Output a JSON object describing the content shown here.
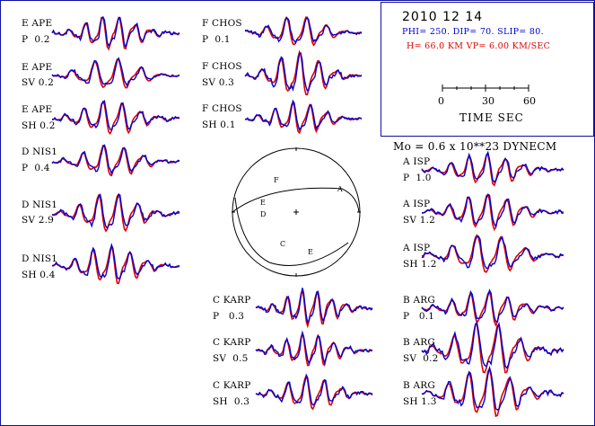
{
  "header": {
    "date": "2010 12 14",
    "mechanism": "PHI= 250. DIP= 70. SLIP= 80.",
    "depth_velocity": "H= 66.0 KM  VP= 6.00 KM/SEC",
    "scale_ticks": [
      "0",
      "30",
      "60"
    ],
    "scale_label": "TIME  SEC",
    "moment": "Mo =  0.6 x 10**23 DYNECM"
  },
  "colors": {
    "observed": "#0000d0",
    "synthetic": "#e00000",
    "frame": "#1010a0"
  },
  "stations": [
    {
      "code": "E APE",
      "phase": "P",
      "amp": "0.2"
    },
    {
      "code": "E APE",
      "phase": "SV",
      "amp": "0.2"
    },
    {
      "code": "E APE",
      "phase": "SH",
      "amp": "0.2"
    },
    {
      "code": "D NIS1",
      "phase": "P",
      "amp": "0.4"
    },
    {
      "code": "D NIS1",
      "phase": "SV",
      "amp": "2.9"
    },
    {
      "code": "D NIS1",
      "phase": "SH",
      "amp": "0.4"
    },
    {
      "code": "F CHOS",
      "phase": "P",
      "amp": "0.1"
    },
    {
      "code": "F CHOS",
      "phase": "SV",
      "amp": "0.3"
    },
    {
      "code": "F CHOS",
      "phase": "SH",
      "amp": "0.1"
    },
    {
      "code": "A ISP",
      "phase": "P",
      "amp": "1.0"
    },
    {
      "code": "A ISP",
      "phase": "SV",
      "amp": "1.2"
    },
    {
      "code": "A ISP",
      "phase": "SH",
      "amp": "1.2"
    },
    {
      "code": "C KARP",
      "phase": "P",
      "amp": "0.3"
    },
    {
      "code": "C KARP",
      "phase": "SV",
      "amp": "0.5"
    },
    {
      "code": "C KARP",
      "phase": "SH",
      "amp": "0.3"
    },
    {
      "code": "B ARG",
      "phase": "P",
      "amp": "0.1"
    },
    {
      "code": "B ARG",
      "phase": "SV",
      "amp": "0.2"
    },
    {
      "code": "B ARG",
      "phase": "SH",
      "amp": "1.3"
    }
  ],
  "beachball": {
    "markers": [
      "F",
      "E",
      "D",
      "A",
      "C",
      "E"
    ]
  }
}
